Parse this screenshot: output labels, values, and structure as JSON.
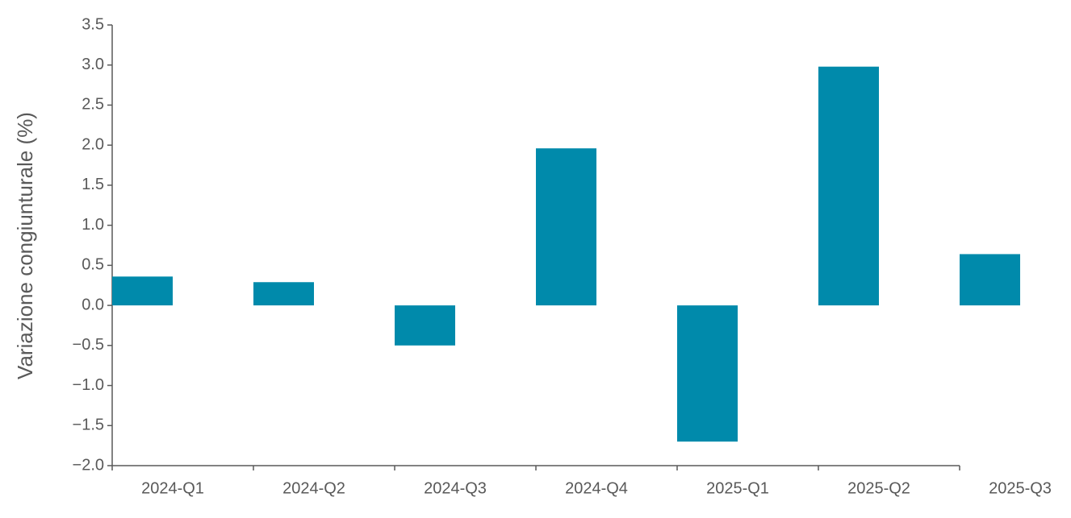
{
  "chart_data": {
    "type": "bar",
    "y_label": "Variazione congiunturale (%)",
    "categories": [
      "2024-Q1",
      "2024-Q2",
      "2024-Q3",
      "2024-Q4",
      "2025-Q1",
      "2025-Q2",
      "2025-Q3"
    ],
    "values": [
      0.36,
      0.29,
      -0.5,
      1.96,
      -1.7,
      2.98,
      0.64
    ],
    "color": "#008aab",
    "ylim": [
      -2.0,
      3.5
    ],
    "yticks": [
      {
        "value": -2.0,
        "label": "−2.0"
      },
      {
        "value": -1.5,
        "label": "−1.5"
      },
      {
        "value": -1.0,
        "label": "−1.0"
      },
      {
        "value": -0.5,
        "label": "−0.5"
      },
      {
        "value": 0,
        "label": "0.0"
      },
      0.5,
      {
        "value": 1.0,
        "label": "1.0"
      },
      1.5,
      {
        "value": 2.0,
        "label": "2.0"
      },
      2.5,
      {
        "value": 3.0,
        "label": "3.0"
      },
      3.5
    ],
    "grid": false
  }
}
